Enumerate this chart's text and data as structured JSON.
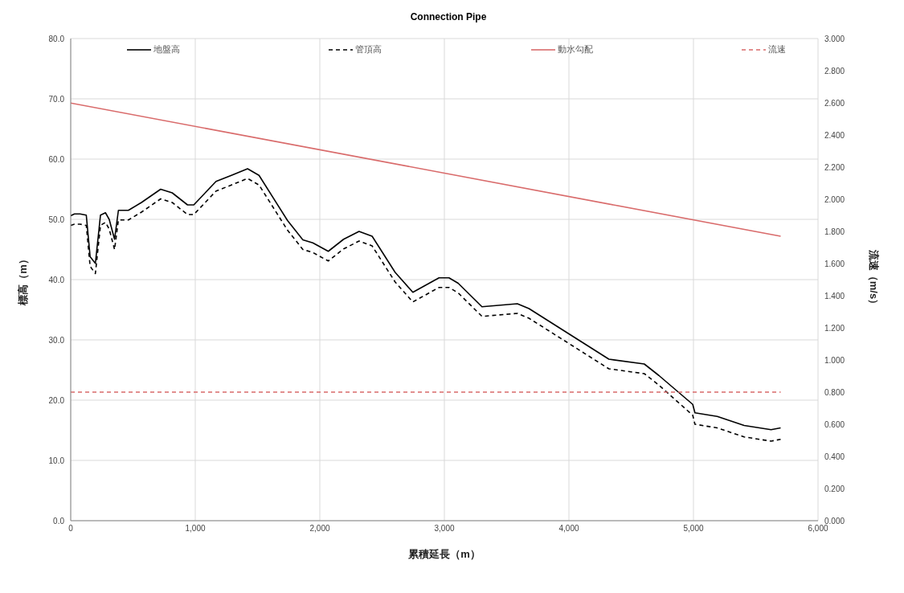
{
  "chart_data": {
    "type": "line",
    "title": "Connection Pipe",
    "xlabel": "累積延長（m）",
    "ylabel": "標高（m）",
    "y2label": "流速（m/s）",
    "xlim": [
      0,
      6000
    ],
    "xticks": [
      0,
      {
        "value": 1000,
        "label": "1,000"
      },
      {
        "value": 2000,
        "label": "2,000"
      },
      {
        "value": 3000,
        "label": "3,000"
      },
      {
        "value": 4000,
        "label": "4,000"
      },
      {
        "value": 5000,
        "label": "5,000"
      },
      {
        "value": 6000,
        "label": "6,000"
      }
    ],
    "ylim": [
      0,
      80
    ],
    "yticks": [
      {
        "value": 0,
        "label": "0.0"
      },
      {
        "value": 10,
        "label": "10.0"
      },
      {
        "value": 20,
        "label": "20.0"
      },
      {
        "value": 30,
        "label": "30.0"
      },
      {
        "value": 40,
        "label": "40.0"
      },
      {
        "value": 50,
        "label": "50.0"
      },
      {
        "value": 60,
        "label": "60.0"
      },
      {
        "value": 70,
        "label": "70.0"
      },
      {
        "value": 80,
        "label": "80.0"
      }
    ],
    "y2lim": [
      0,
      3
    ],
    "y2ticks": [
      {
        "value": 0,
        "label": "0.000"
      },
      {
        "value": 0.2,
        "label": "0.200"
      },
      {
        "value": 0.4,
        "label": "0.400"
      },
      {
        "value": 0.6,
        "label": "0.600"
      },
      {
        "value": 0.8,
        "label": "0.800"
      },
      {
        "value": 1,
        "label": "1.000"
      },
      {
        "value": 1.2,
        "label": "1.200"
      },
      {
        "value": 1.4,
        "label": "1.400"
      },
      {
        "value": 1.6,
        "label": "1.600"
      },
      {
        "value": 1.8,
        "label": "1.800"
      },
      {
        "value": 2,
        "label": "2.000"
      },
      {
        "value": 2.2,
        "label": "2.200"
      },
      {
        "value": 2.4,
        "label": "2.400"
      },
      {
        "value": 2.6,
        "label": "2.600"
      },
      {
        "value": 2.8,
        "label": "2.800"
      },
      {
        "value": 3,
        "label": "3.000"
      }
    ],
    "grid": true,
    "legend": "top",
    "marker": "none",
    "series": [
      {
        "name": "地盤高",
        "color": "#000000",
        "line_style": "solid",
        "x": [
          0,
          30,
          75,
          125,
          156,
          198,
          239,
          279,
          309,
          352,
          383,
          463,
          568,
          722,
          815,
          938,
          988,
          1167,
          1290,
          1420,
          1512,
          1741,
          1864,
          1944,
          2068,
          2191,
          2315,
          2420,
          2605,
          2747,
          2957,
          3037,
          3111,
          3302,
          3586,
          3679,
          4321,
          4605,
          4722,
          4994,
          5012,
          5191,
          5407,
          5623,
          5700
        ],
        "values": [
          50.6,
          50.9,
          50.9,
          50.7,
          43.8,
          42.7,
          50.7,
          51.1,
          50.0,
          46.7,
          51.5,
          51.5,
          52.8,
          55.0,
          54.4,
          52.4,
          52.4,
          56.3,
          57.3,
          58.4,
          57.3,
          49.8,
          46.6,
          46.1,
          44.7,
          46.7,
          48.0,
          47.2,
          41.2,
          37.9,
          40.3,
          40.3,
          39.4,
          35.5,
          36.0,
          35.2,
          26.8,
          26.0,
          24.1,
          19.3,
          17.9,
          17.3,
          15.8,
          15.1,
          15.4
        ]
      },
      {
        "name": "管頂高",
        "color": "#000000",
        "line_style": "dashed",
        "x": [
          0,
          30,
          75,
          125,
          156,
          198,
          239,
          279,
          309,
          352,
          383,
          463,
          568,
          722,
          815,
          938,
          988,
          1167,
          1290,
          1420,
          1512,
          1741,
          1864,
          1944,
          2068,
          2191,
          2315,
          2420,
          2605,
          2747,
          2957,
          3037,
          3111,
          3302,
          3586,
          3679,
          4321,
          4605,
          4722,
          4994,
          5012,
          5191,
          5407,
          5623,
          5700
        ],
        "values": [
          49.0,
          49.2,
          49.2,
          49.0,
          42.2,
          41.0,
          49.0,
          49.5,
          48.4,
          45.0,
          49.9,
          49.9,
          51.2,
          53.4,
          52.8,
          50.8,
          50.8,
          54.7,
          55.7,
          56.8,
          55.7,
          48.2,
          45.0,
          44.5,
          43.1,
          45.1,
          46.4,
          45.6,
          39.6,
          36.3,
          38.7,
          38.7,
          37.8,
          33.9,
          34.4,
          33.6,
          25.2,
          24.4,
          22.5,
          17.5,
          16.0,
          15.4,
          13.9,
          13.2,
          13.5
        ]
      },
      {
        "name": "動水勾配",
        "color": "#d96b6b",
        "line_style": "solid",
        "x": [
          0,
          5700
        ],
        "values": [
          69.3,
          47.2
        ]
      },
      {
        "name": "流速",
        "color": "#d96b6b",
        "line_style": "dashed",
        "axis": "y2",
        "x": [
          0,
          5700
        ],
        "values": [
          0.8,
          0.8
        ]
      }
    ]
  }
}
